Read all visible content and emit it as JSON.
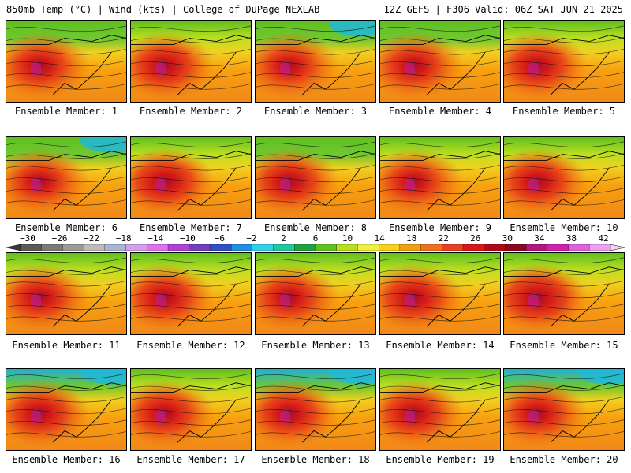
{
  "header": {
    "left": "850mb Temp (°C) | Wind (kts) | College of DuPage NEXLAB",
    "right": "12Z GEFS | F306 Valid: 06Z SAT JUN 21 2025"
  },
  "caption_prefix": "Ensemble Member: ",
  "members": [
    {
      "id": "1",
      "label": "Ensemble Member: 1",
      "north_cool": 0.55,
      "west_heat": 0.8
    },
    {
      "id": "2",
      "label": "Ensemble Member: 2",
      "north_cool": 0.35,
      "west_heat": 0.85
    },
    {
      "id": "3",
      "label": "Ensemble Member: 3",
      "north_cool": 0.6,
      "west_heat": 0.75
    },
    {
      "id": "4",
      "label": "Ensemble Member: 4",
      "north_cool": 0.55,
      "west_heat": 0.8
    },
    {
      "id": "5",
      "label": "Ensemble Member: 5",
      "north_cool": 0.45,
      "west_heat": 0.85
    },
    {
      "id": "6",
      "label": "Ensemble Member: 6",
      "north_cool": 0.6,
      "west_heat": 0.75
    },
    {
      "id": "7",
      "label": "Ensemble Member: 7",
      "north_cool": 0.45,
      "west_heat": 0.9
    },
    {
      "id": "8",
      "label": "Ensemble Member: 8",
      "north_cool": 0.55,
      "west_heat": 0.85
    },
    {
      "id": "9",
      "label": "Ensemble Member: 9",
      "north_cool": 0.45,
      "west_heat": 0.75
    },
    {
      "id": "10",
      "label": "Ensemble Member: 10",
      "north_cool": 0.4,
      "west_heat": 0.85
    },
    {
      "id": "11",
      "label": "Ensemble Member: 11",
      "north_cool": 0.45,
      "west_heat": 0.8
    },
    {
      "id": "12",
      "label": "Ensemble Member: 12",
      "north_cool": 0.25,
      "west_heat": 0.85
    },
    {
      "id": "13",
      "label": "Ensemble Member: 13",
      "north_cool": 0.35,
      "west_heat": 0.8
    },
    {
      "id": "14",
      "label": "Ensemble Member: 14",
      "north_cool": 0.35,
      "west_heat": 0.85
    },
    {
      "id": "15",
      "label": "Ensemble Member: 15",
      "north_cool": 0.4,
      "west_heat": 0.95
    },
    {
      "id": "16",
      "label": "Ensemble Member: 16",
      "north_cool": 0.8,
      "west_heat": 0.85
    },
    {
      "id": "17",
      "label": "Ensemble Member: 17",
      "north_cool": 0.4,
      "west_heat": 0.85
    },
    {
      "id": "18",
      "label": "Ensemble Member: 18",
      "north_cool": 0.65,
      "west_heat": 0.85
    },
    {
      "id": "19",
      "label": "Ensemble Member: 19",
      "north_cool": 0.5,
      "west_heat": 0.85
    },
    {
      "id": "20",
      "label": "Ensemble Member: 20",
      "north_cool": 0.85,
      "west_heat": 0.8
    }
  ],
  "colorbar": {
    "labels": [
      "−30",
      "−26",
      "−22",
      "−18",
      "−14",
      "−10",
      "−6",
      "−2",
      "2",
      "6",
      "10",
      "14",
      "18",
      "22",
      "26",
      "30",
      "34",
      "38",
      "42"
    ],
    "colors": [
      "#5a5a5a",
      "#7a7a7a",
      "#9a9a9a",
      "#bcbcbc",
      "#a8b4d8",
      "#d0a0e8",
      "#e070f0",
      "#b040d8",
      "#7040c0",
      "#3050c8",
      "#2090e0",
      "#30d0e8",
      "#20c8a0",
      "#20a040",
      "#60c020",
      "#b8e020",
      "#f0f040",
      "#f8d020",
      "#f0a010",
      "#f07020",
      "#e84020",
      "#d81818",
      "#b00818",
      "#880820",
      "#b01880",
      "#d020b0",
      "#e060e0",
      "#f0a0f0"
    ]
  }
}
